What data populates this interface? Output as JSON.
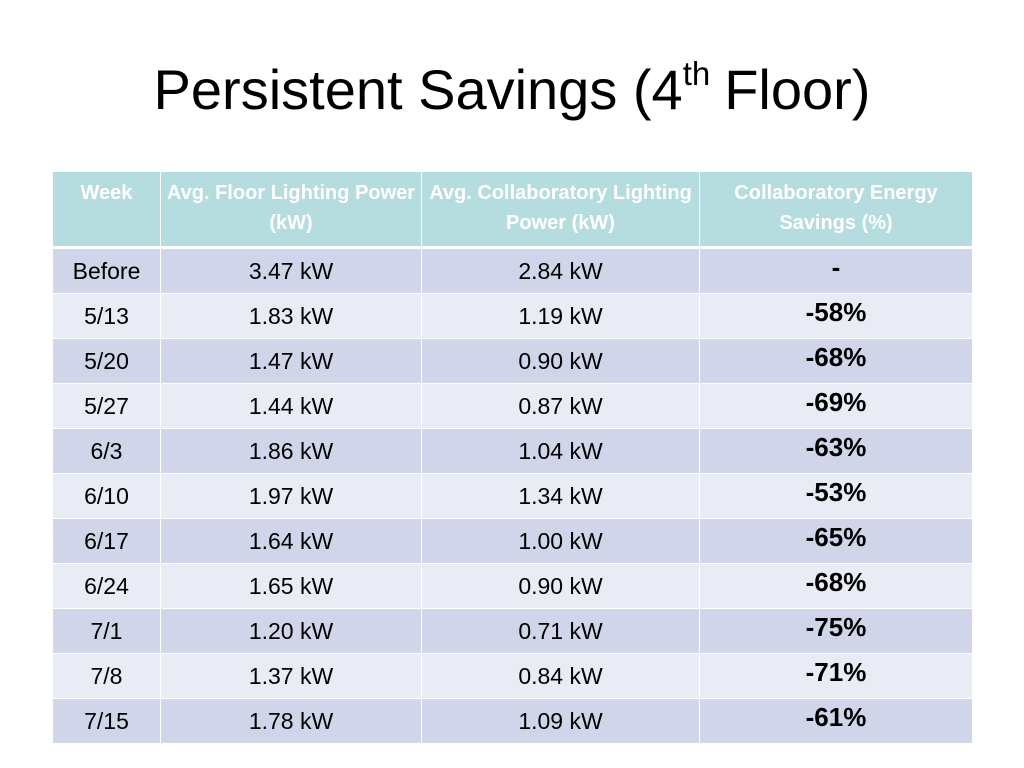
{
  "header": {
    "title_main": "Persistent Savings (4",
    "title_sup": "th",
    "title_end": "Floor)"
  },
  "table": {
    "columns": [
      "Week",
      "Avg. Floor Lighting Power (kW)",
      "Avg. Collaboratory Lighting Power (kW)",
      "Collaboratory Energy Savings (%)"
    ],
    "rows": [
      [
        "Before",
        "3.47 kW",
        "2.84 kW",
        "-"
      ],
      [
        "5/13",
        "1.83 kW",
        "1.19 kW",
        "-58%"
      ],
      [
        "5/20",
        "1.47 kW",
        "0.90 kW",
        "-68%"
      ],
      [
        "5/27",
        "1.44 kW",
        "0.87 kW",
        "-69%"
      ],
      [
        "6/3",
        "1.86 kW",
        "1.04 kW",
        "-63%"
      ],
      [
        "6/10",
        "1.97 kW",
        "1.34 kW",
        "-53%"
      ],
      [
        "6/17",
        "1.64 kW",
        "1.00 kW",
        "-65%"
      ],
      [
        "6/24",
        "1.65 kW",
        "0.90 kW",
        "-68%"
      ],
      [
        "7/1",
        "1.20 kW",
        "0.71 kW",
        "-75%"
      ],
      [
        "7/8",
        "1.37 kW",
        "0.84 kW",
        "-71%"
      ],
      [
        "7/15",
        "1.78 kW",
        "1.09 kW",
        "-61%"
      ]
    ]
  }
}
